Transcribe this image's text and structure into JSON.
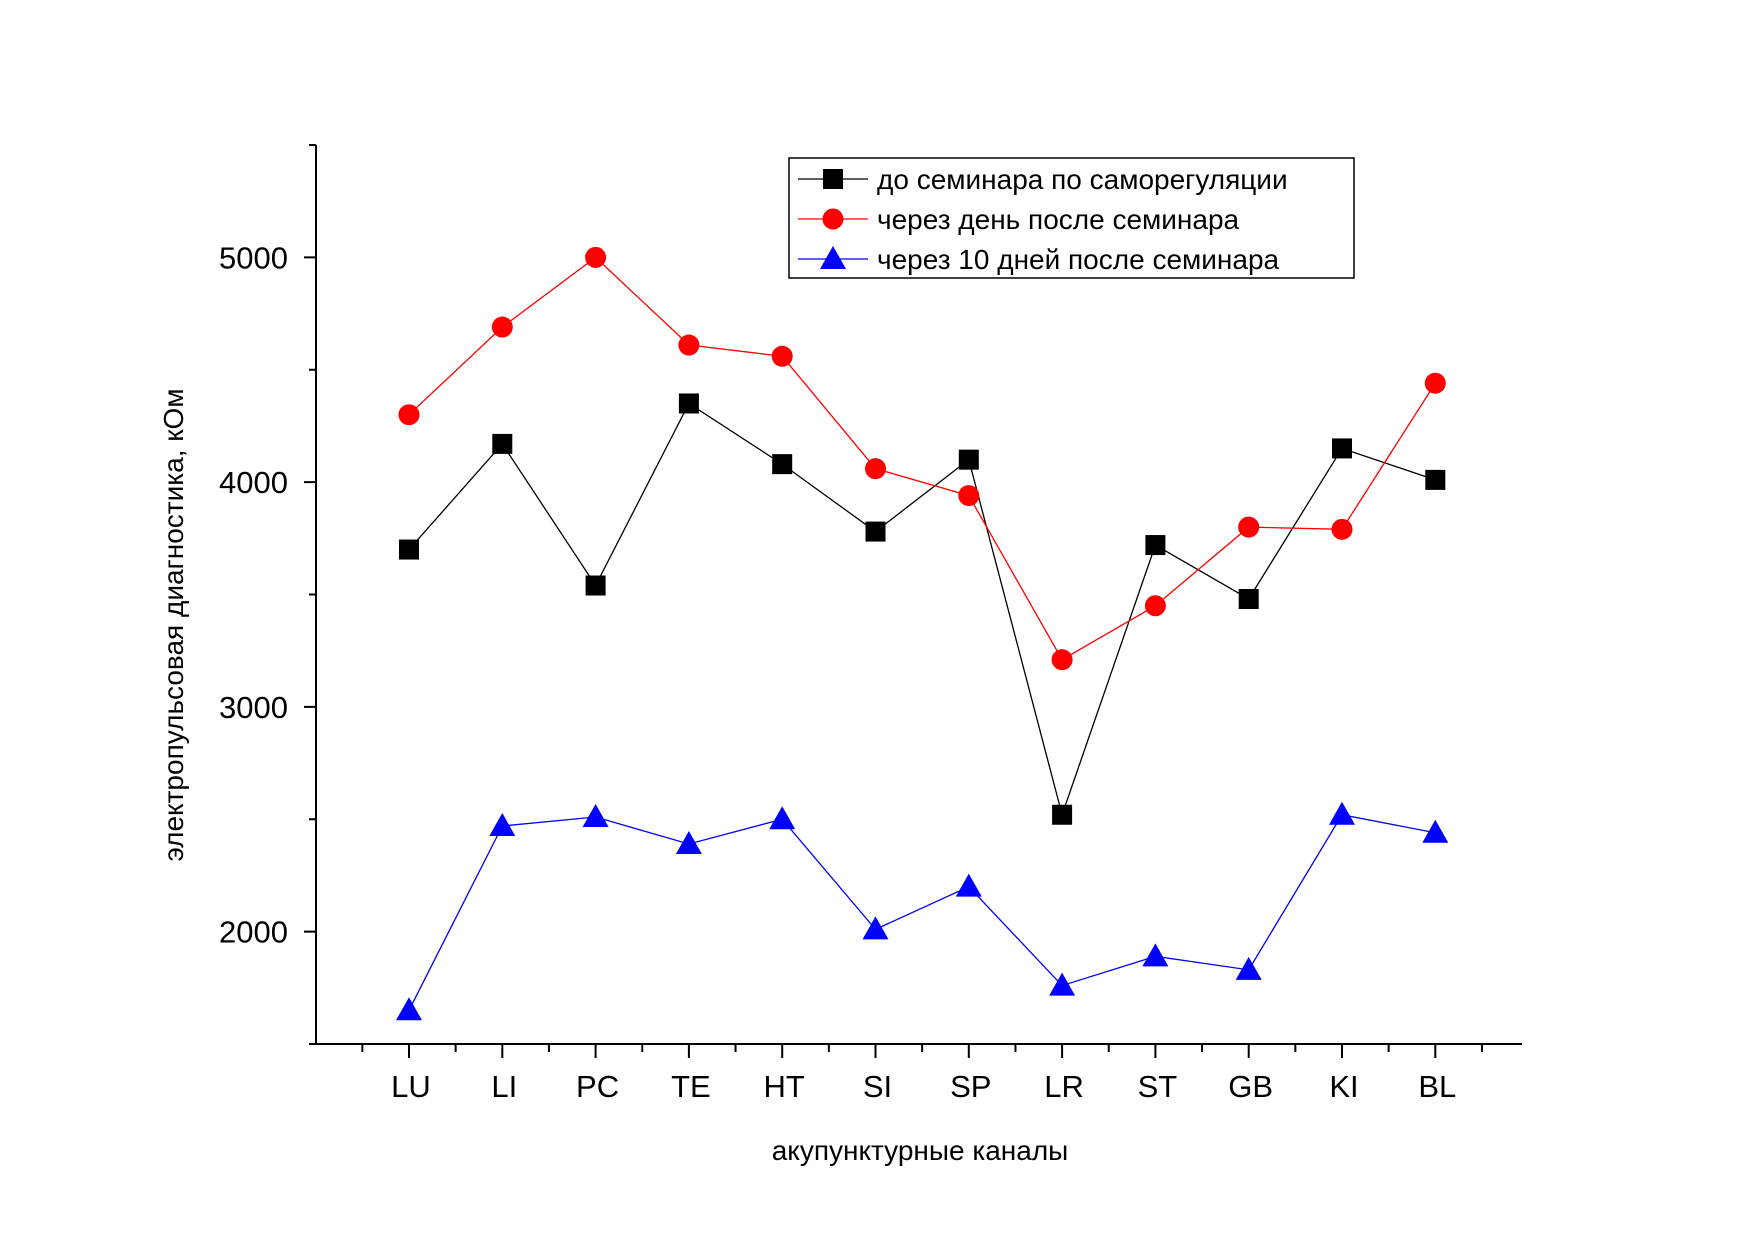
{
  "chart_data": {
    "type": "line",
    "title": "",
    "xlabel": "акупунктурные каналы",
    "ylabel": "электропульсовая диагностика, кОм",
    "categories": [
      "LU",
      "LI",
      "PC",
      "TE",
      "HT",
      "SI",
      "SP",
      "LR",
      "ST",
      "GB",
      "KI",
      "BL"
    ],
    "yticks": [
      "2000",
      "3000",
      "4000",
      "5000"
    ],
    "ylim": [
      1500,
      5500
    ],
    "grid": false,
    "legend_position": "top-right",
    "series": [
      {
        "name": "до семинара по саморегуляции",
        "color": "#000000",
        "marker": "square",
        "values": [
          3700,
          4170,
          3540,
          4350,
          4080,
          3780,
          4100,
          2520,
          3720,
          3480,
          4150,
          4010
        ]
      },
      {
        "name": "через день после семинара",
        "color": "#ff0000",
        "marker": "circle",
        "values": [
          4300,
          4690,
          5000,
          4610,
          4560,
          4060,
          3940,
          3210,
          3450,
          3800,
          3790,
          4440
        ]
      },
      {
        "name": "через 10 дней после семинара",
        "color": "#0000ff",
        "marker": "triangle",
        "values": [
          1650,
          2470,
          2510,
          2390,
          2500,
          2010,
          2200,
          1760,
          1890,
          1830,
          2520,
          2440
        ]
      }
    ]
  }
}
